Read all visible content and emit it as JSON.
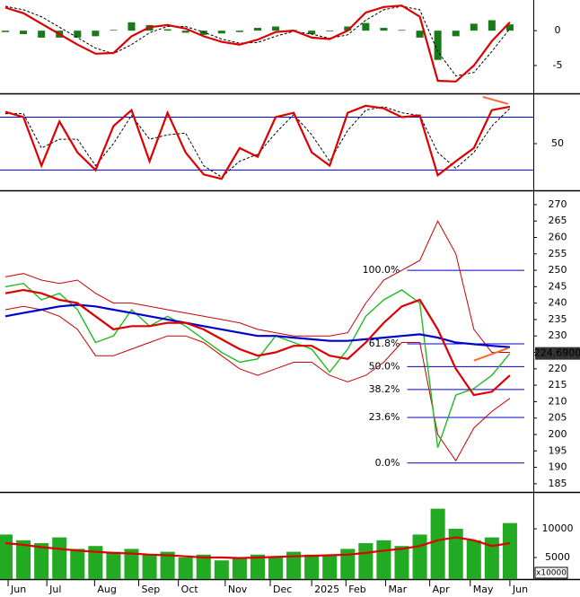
{
  "chart_data": [
    {
      "type": "line",
      "x": [
        0,
        1,
        2,
        3,
        4,
        5,
        6,
        7,
        8,
        9,
        10,
        11,
        12,
        13,
        14,
        15,
        16,
        17,
        18,
        19,
        20,
        21,
        22,
        23,
        24,
        25,
        26,
        27,
        28
      ],
      "xlim": [
        -0.3,
        29.3
      ],
      "ylim": [
        -9,
        4.4
      ],
      "yticks": [
        0,
        -5
      ],
      "series": [
        {
          "name": "Histogram",
          "style": "bar",
          "color": "#1a7a1a",
          "values": [
            -0.2,
            -0.5,
            -1,
            -1,
            -1,
            -0.8,
            0.1,
            1.2,
            0.8,
            0.2,
            -0.3,
            -0.6,
            -0.4,
            -0.2,
            0.4,
            0.6,
            0.1,
            -0.5,
            -0.1,
            0.6,
            1.1,
            0.4,
            0.1,
            -1,
            -4.2,
            -0.8,
            1,
            1.5,
            0.9
          ]
        },
        {
          "name": "Signal",
          "style": "dashed",
          "color": "#000000",
          "values": [
            3.5,
            3.0,
            2.0,
            0.5,
            -1.0,
            -2.5,
            -3.3,
            -2.0,
            -0.3,
            0.6,
            0.6,
            -0.2,
            -1.2,
            -1.8,
            -1.7,
            -0.8,
            -0.1,
            -0.5,
            -1.1,
            -0.6,
            1.5,
            3.0,
            3.5,
            3.0,
            -3.0,
            -6.5,
            -6.0,
            -3.0,
            0.3
          ]
        },
        {
          "name": "MACD",
          "style": "solid",
          "color": "#dd0000",
          "values": [
            3.3,
            2.5,
            1.0,
            -0.5,
            -2.0,
            -3.3,
            -3.2,
            -0.8,
            0.5,
            0.8,
            0.3,
            -0.8,
            -1.6,
            -2.0,
            -1.3,
            -0.2,
            0.0,
            -1.0,
            -1.2,
            0.0,
            2.6,
            3.4,
            3.6,
            2.0,
            -7.2,
            -7.3,
            -5.0,
            -1.5,
            1.2
          ]
        }
      ]
    },
    {
      "type": "line",
      "x": [
        0,
        1,
        2,
        3,
        4,
        5,
        6,
        7,
        8,
        9,
        10,
        11,
        12,
        13,
        14,
        15,
        16,
        17,
        18,
        19,
        20,
        21,
        22,
        23,
        24,
        25,
        26,
        27,
        28
      ],
      "xlim": [
        -0.3,
        29.3
      ],
      "ylim": [
        -3,
        105
      ],
      "yticks": [
        50
      ],
      "hlines": [
        80,
        20
      ],
      "hline_color": "#0000cc",
      "series": [
        {
          "name": "%D",
          "style": "dashed",
          "color": "#000000",
          "values": [
            84,
            84,
            45,
            55,
            55,
            25,
            50,
            82,
            55,
            60,
            62,
            25,
            12,
            30,
            38,
            62,
            83,
            60,
            30,
            65,
            88,
            92,
            85,
            82,
            40,
            22,
            40,
            70,
            90
          ]
        },
        {
          "name": "%K",
          "style": "solid",
          "color": "#dd0000",
          "values": [
            86,
            80,
            25,
            75,
            40,
            20,
            70,
            88,
            30,
            85,
            40,
            15,
            10,
            45,
            35,
            80,
            85,
            40,
            25,
            85,
            93,
            90,
            80,
            82,
            14,
            30,
            45,
            88,
            92
          ]
        }
      ],
      "trendlines": [
        {
          "x": [
            26.5,
            27.9
          ],
          "y": [
            103,
            95
          ],
          "color": "#ff6633"
        }
      ]
    },
    {
      "type": "line",
      "x": [
        0,
        1,
        2,
        3,
        4,
        5,
        6,
        7,
        8,
        9,
        10,
        11,
        12,
        13,
        14,
        15,
        16,
        17,
        18,
        19,
        20,
        21,
        22,
        23,
        24,
        25,
        26,
        27,
        28
      ],
      "xlim": [
        -0.3,
        29.3
      ],
      "ylim": [
        182.5,
        273.8
      ],
      "yticks": [
        185,
        190,
        195,
        200,
        205,
        210,
        215,
        220,
        225,
        230,
        235,
        240,
        245,
        250,
        255,
        260,
        265,
        270
      ],
      "series": [
        {
          "name": "Upper band",
          "style": "thin",
          "color": "#cc0000",
          "values": [
            248,
            249,
            247,
            246,
            247,
            243,
            240,
            240,
            239,
            238,
            237,
            236,
            235,
            234,
            232,
            231,
            230,
            230,
            230,
            231,
            240,
            247,
            250,
            253,
            265,
            255,
            232,
            225,
            225
          ]
        },
        {
          "name": "Lower band",
          "style": "thin",
          "color": "#cc0000",
          "values": [
            238,
            239,
            238,
            236,
            232,
            224,
            224,
            226,
            228,
            230,
            230,
            228,
            224,
            220,
            218,
            220,
            222,
            222,
            218,
            216,
            218,
            222,
            228,
            228,
            200,
            192,
            202,
            207,
            211
          ]
        },
        {
          "name": "Close",
          "style": "price",
          "color": "#22bb22",
          "values": [
            245,
            246,
            241,
            243,
            238,
            228,
            230,
            238,
            233,
            236,
            233,
            229,
            225,
            222,
            223,
            230,
            228,
            226,
            219,
            226,
            236,
            241,
            244,
            240,
            196,
            212,
            214,
            218,
            224.69
          ]
        },
        {
          "name": "MA200",
          "style": "solid",
          "color": "#0000cc",
          "values": [
            236,
            237,
            238,
            239,
            239.5,
            239,
            238,
            237,
            236,
            235,
            234,
            233,
            232,
            231,
            230,
            230,
            229.5,
            229,
            228.5,
            228.5,
            229,
            229.5,
            230,
            230.5,
            229.5,
            228,
            227.5,
            227,
            226.6
          ]
        },
        {
          "name": "MA20",
          "style": "solid",
          "color": "#dd0000",
          "values": [
            243,
            244,
            243,
            241,
            240,
            236,
            232,
            233,
            233,
            234,
            234,
            232,
            229,
            226,
            224,
            225,
            227,
            227,
            224,
            223,
            228,
            234,
            239,
            241,
            232,
            220,
            212,
            213,
            218
          ]
        }
      ],
      "fib_x": [
        22.3,
        28.8
      ],
      "fib_levels": [
        {
          "label": "100.0%",
          "value": 250
        },
        {
          "label": "61.8%",
          "value": 227.6
        },
        {
          "label": "50.0%",
          "value": 220.65
        },
        {
          "label": "38.2%",
          "value": 213.7
        },
        {
          "label": "23.6%",
          "value": 205.2
        },
        {
          "label": "0.0%",
          "value": 191.3
        }
      ],
      "trendlines": [
        {
          "x": [
            26,
            27.9
          ],
          "y": [
            222.5,
            226.3
          ],
          "color": "#ff6633"
        }
      ],
      "last_price": {
        "value": 224.69,
        "label": "224.6900"
      }
    },
    {
      "type": "bar",
      "x": [
        0,
        1,
        2,
        3,
        4,
        5,
        6,
        7,
        8,
        9,
        10,
        11,
        12,
        13,
        14,
        15,
        16,
        17,
        18,
        19,
        20,
        21,
        22,
        23,
        24,
        25,
        26,
        27,
        28
      ],
      "xlim": [
        -0.3,
        29.3
      ],
      "ylim": [
        1250,
        16100
      ],
      "yticks": [
        {
          "value": 5000,
          "label": "5000"
        },
        {
          "value": 10000,
          "label": "10000"
        }
      ],
      "unit_label": "x10000",
      "series": [
        {
          "name": "Volume",
          "style": "bar",
          "color": "#22aa22",
          "values": [
            9000,
            8000,
            7500,
            8500,
            6500,
            7000,
            6000,
            6500,
            5500,
            6000,
            5000,
            5500,
            4500,
            5000,
            5500,
            5000,
            6000,
            5500,
            5500,
            6500,
            7500,
            8000,
            7000,
            9000,
            13500,
            10000,
            8000,
            8500,
            11000
          ]
        },
        {
          "name": "Volume MA",
          "style": "solid",
          "color": "#dd0000",
          "values": [
            7500,
            7200,
            6800,
            6500,
            6200,
            6000,
            5800,
            5700,
            5500,
            5400,
            5200,
            5000,
            5000,
            4900,
            5000,
            5100,
            5200,
            5300,
            5400,
            5500,
            5800,
            6200,
            6500,
            7000,
            8000,
            8500,
            8000,
            7000,
            7500
          ]
        }
      ],
      "xticks": [
        {
          "value": 0.15,
          "label": "Jun"
        },
        {
          "value": 2.3,
          "label": "Jul"
        },
        {
          "value": 4.95,
          "label": "Aug"
        },
        {
          "value": 7.4,
          "label": "Sep"
        },
        {
          "value": 9.6,
          "label": "Oct"
        },
        {
          "value": 12.2,
          "label": "Nov"
        },
        {
          "value": 14.7,
          "label": "Dec"
        },
        {
          "value": 17.0,
          "label": "2025"
        },
        {
          "value": 18.9,
          "label": "Feb"
        },
        {
          "value": 21.1,
          "label": "Mar"
        },
        {
          "value": 23.55,
          "label": "Apr"
        },
        {
          "value": 25.8,
          "label": "May"
        },
        {
          "value": 28.0,
          "label": "Jun"
        }
      ]
    }
  ]
}
